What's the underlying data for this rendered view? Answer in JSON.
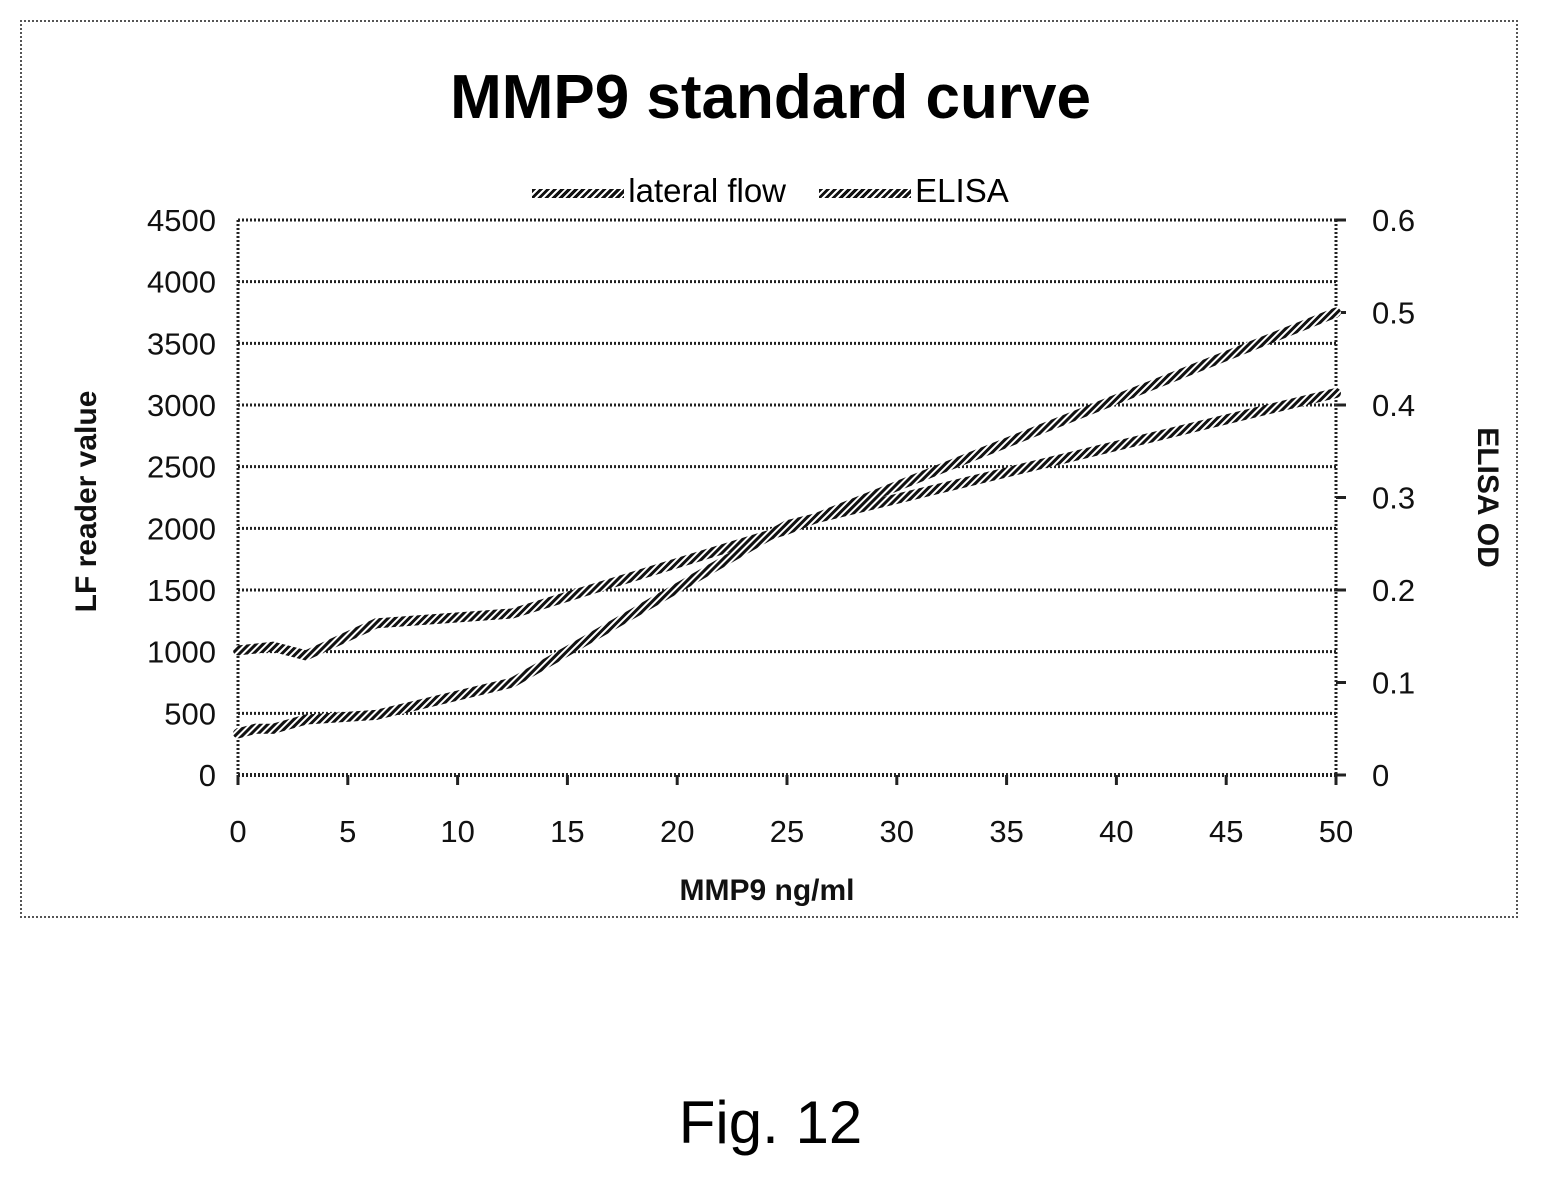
{
  "figure_caption": "Fig. 12",
  "chart_data": {
    "type": "line",
    "title": "MMP9 standard curve",
    "xlabel": "MMP9 ng/ml",
    "ylabel": "LF reader value",
    "y2label": "ELISA OD",
    "xlim": [
      0,
      50
    ],
    "ylim": [
      0,
      4500
    ],
    "y2lim": [
      0,
      0.6
    ],
    "x_ticks": [
      "0",
      "5",
      "10",
      "15",
      "20",
      "25",
      "30",
      "35",
      "40",
      "45",
      "50"
    ],
    "y_ticks": [
      "0",
      "500",
      "1000",
      "1500",
      "2000",
      "2500",
      "3000",
      "3500",
      "4000",
      "4500"
    ],
    "y2_ticks": [
      "0",
      "0.1",
      "0.2",
      "0.3",
      "0.4",
      "0.5",
      "0.6"
    ],
    "grid": "horizontal",
    "legend": "top",
    "series": [
      {
        "name": "lateral flow",
        "axis": "left",
        "x": [
          0,
          1.6,
          3.1,
          6.3,
          12.5,
          25,
          50
        ],
        "values": [
          1010,
          1040,
          970,
          1230,
          1310,
          1990,
          3750
        ]
      },
      {
        "name": "ELISA",
        "axis": "right",
        "x": [
          0,
          0.8,
          1.6,
          3.1,
          6.3,
          12.5,
          25,
          50
        ],
        "values": [
          0.045,
          0.05,
          0.05,
          0.06,
          0.065,
          0.1,
          0.27,
          0.413
        ]
      }
    ]
  }
}
